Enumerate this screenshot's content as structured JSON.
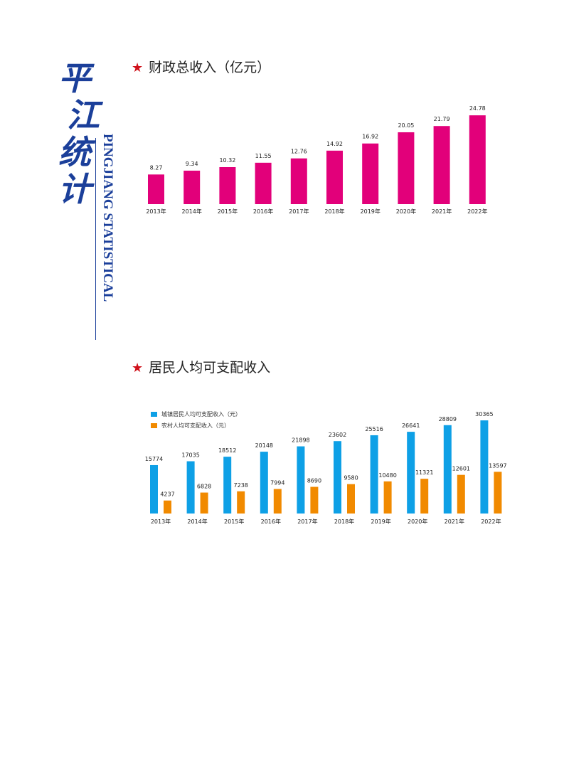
{
  "brand": {
    "chars": [
      "平",
      "江",
      "统",
      "计"
    ],
    "english": "PINGJIANG STATISTICAL"
  },
  "charts": [
    {
      "star": "★",
      "title": "财政总收入（亿元）"
    },
    {
      "star": "★",
      "title": "居民人均可支配收入"
    }
  ],
  "colors": {
    "fiscal_bar": "#e2007a",
    "urban_bar": "#0ea0e6",
    "rural_bar": "#f18a00",
    "brand": "#1b3f9a",
    "star": "#d0111b"
  },
  "chart_data": [
    {
      "type": "bar",
      "title": "财政总收入（亿元）",
      "categories": [
        "2013年",
        "2014年",
        "2015年",
        "2016年",
        "2017年",
        "2018年",
        "2019年",
        "2020年",
        "2021年",
        "2022年"
      ],
      "values": [
        8.27,
        9.34,
        10.32,
        11.55,
        12.76,
        14.92,
        16.92,
        20.05,
        21.79,
        24.78
      ],
      "value_labels": [
        "8.27",
        "9.34",
        "10.32",
        "11.55",
        "12.76",
        "14.92",
        "16.92",
        "20.05",
        "21.79",
        "24.78"
      ],
      "ylim": [
        0,
        26
      ],
      "grid": false
    },
    {
      "type": "bar",
      "title": "居民人均可支配收入",
      "categories": [
        "2013年",
        "2014年",
        "2015年",
        "2016年",
        "2017年",
        "2018年",
        "2019年",
        "2020年",
        "2021年",
        "2022年"
      ],
      "series": [
        {
          "name": "城镇居民人均可支配收入（元）",
          "values": [
            15774,
            17035,
            18512,
            20148,
            21898,
            23602,
            25516,
            26641,
            28809,
            30365
          ]
        },
        {
          "name": "农村人均可支配收入（元）",
          "values": [
            4237,
            6828,
            7238,
            7994,
            8690,
            9580,
            10480,
            11321,
            12601,
            13597
          ]
        }
      ],
      "ylim": [
        0,
        32000
      ],
      "legend": "top-left",
      "grid": false
    }
  ]
}
